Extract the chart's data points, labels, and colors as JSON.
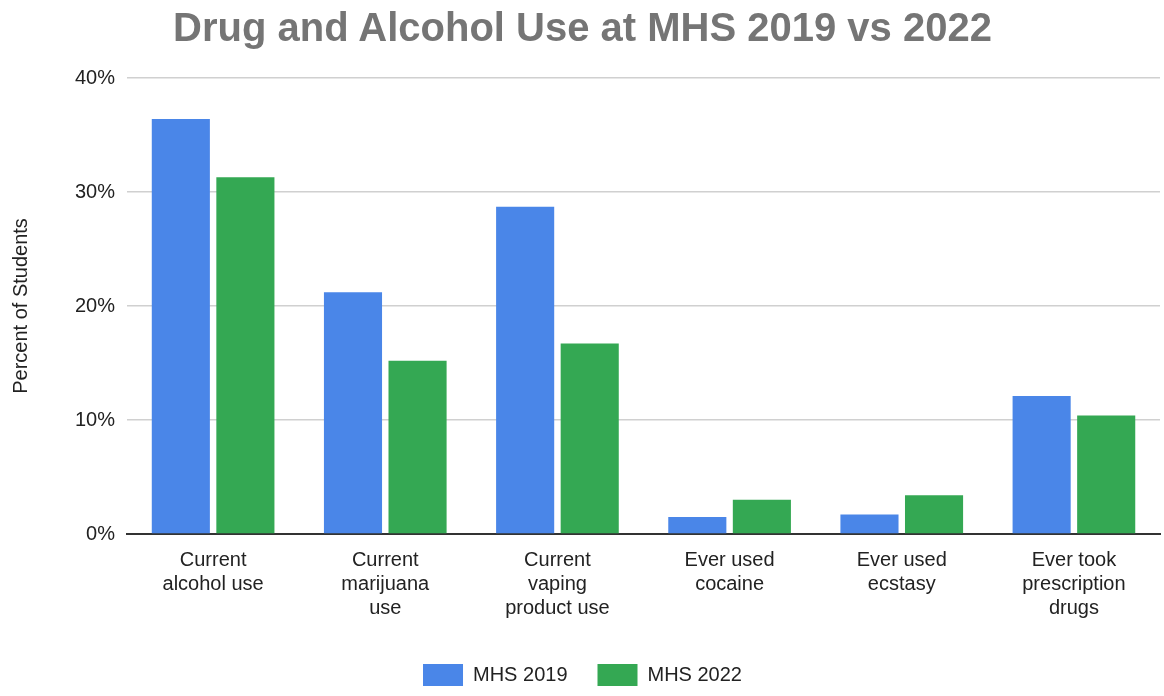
{
  "chart_data": {
    "type": "bar",
    "title": "Drug and Alcohol Use at MHS 2019 vs 2022",
    "ylabel": "Percent of Students",
    "categories": [
      "Current alcohol use",
      "Current marijuana use",
      "Current vaping product use",
      "Ever used cocaine",
      "Ever used ecstasy",
      "Ever took prescription drugs"
    ],
    "series": [
      {
        "name": "MHS 2019",
        "color": "#4a86e8",
        "values": [
          36.4,
          21.2,
          28.7,
          1.5,
          1.7,
          12.1
        ]
      },
      {
        "name": "MHS 2022",
        "color": "#34a853",
        "values": [
          31.3,
          15.2,
          16.7,
          3.0,
          3.4,
          10.4
        ]
      }
    ],
    "ylim": [
      0,
      40
    ],
    "yticks": [
      {
        "value": 0,
        "label": "0%"
      },
      {
        "value": 10,
        "label": "10%"
      },
      {
        "value": 20,
        "label": "20%"
      },
      {
        "value": 30,
        "label": "30%"
      },
      {
        "value": 40,
        "label": "40%"
      }
    ],
    "grid": "y",
    "legend": "bottom"
  }
}
